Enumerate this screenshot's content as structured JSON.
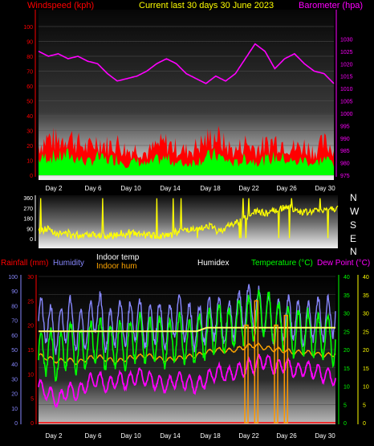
{
  "header": {
    "wind_label": "Windspeed (kph)",
    "title": "Current last 30 days 30 June 2023",
    "baro_label": "Barometer (hpa)"
  },
  "x_axis": {
    "ticks": [
      "Day 2",
      "Day 6",
      "Day 10",
      "Day 14",
      "Day 18",
      "Day 22",
      "Day 26",
      "Day 30"
    ]
  },
  "legend": {
    "rainfall": "Rainfall (mm)",
    "humidity": "Humidity",
    "indoor_temp": "Indoor temp",
    "indoor_hum": "Indoor hum",
    "humidex": "Humidex",
    "temperature": "Temperature (°C)",
    "dew_point": "Dew Point (°C)"
  },
  "direction_labels": [
    "N",
    "W",
    "S",
    "E",
    "N"
  ],
  "colors": {
    "wind_gust": "#ff0000",
    "wind_avg": "#00ff00",
    "barometer": "#ff00ff",
    "direction": "#ffff00",
    "rainfall": "#ff0000",
    "humidity": "#8888ff",
    "indoor_temp": "#ffffff",
    "indoor_hum": "#ffa500",
    "temperature": "#00ff00",
    "dew_point": "#ff00ff"
  },
  "chart_data": [
    {
      "type": "area",
      "ylim_left": [
        0,
        100
      ],
      "left_ticks": [
        0,
        10,
        20,
        30,
        40,
        50,
        60,
        70,
        80,
        90,
        100
      ],
      "ylim_right": [
        975,
        1035
      ],
      "right_ticks": [
        975,
        980,
        985,
        990,
        995,
        1000,
        1005,
        1010,
        1015,
        1020,
        1025,
        1030
      ],
      "x_days": [
        1,
        31
      ],
      "series": [
        {
          "name": "Windspeed (kph)",
          "kind": "gust",
          "x": [
            1,
            2,
            3,
            4,
            5,
            6,
            7,
            8,
            9,
            10,
            11,
            12,
            13,
            14,
            15,
            16,
            17,
            18,
            19,
            20,
            21,
            22,
            23,
            24,
            25,
            26,
            27,
            28,
            29,
            30,
            31
          ],
          "values": [
            22,
            28,
            25,
            30,
            24,
            20,
            26,
            22,
            24,
            18,
            20,
            16,
            22,
            24,
            20,
            18,
            21,
            26,
            30,
            22,
            18,
            24,
            20,
            22,
            26,
            24,
            20,
            22,
            18,
            24,
            20
          ]
        },
        {
          "name": "Windspeed (kph)",
          "kind": "average",
          "x": [
            1,
            2,
            3,
            4,
            5,
            6,
            7,
            8,
            9,
            10,
            11,
            12,
            13,
            14,
            15,
            16,
            17,
            18,
            19,
            20,
            21,
            22,
            23,
            24,
            25,
            26,
            27,
            28,
            29,
            30,
            31
          ],
          "values": [
            12,
            15,
            14,
            16,
            13,
            10,
            14,
            12,
            13,
            9,
            11,
            8,
            12,
            13,
            10,
            9,
            11,
            14,
            16,
            12,
            9,
            13,
            11,
            12,
            14,
            13,
            10,
            12,
            9,
            13,
            10
          ]
        },
        {
          "name": "Barometer (hpa)",
          "axis": "right",
          "x": [
            1,
            2,
            3,
            4,
            5,
            6,
            7,
            8,
            9,
            10,
            11,
            12,
            13,
            14,
            15,
            16,
            17,
            18,
            19,
            20,
            21,
            22,
            23,
            24,
            25,
            26,
            27,
            28,
            29,
            30,
            31
          ],
          "values": [
            1025,
            1023,
            1024,
            1022,
            1023,
            1021,
            1020,
            1016,
            1013,
            1014,
            1015,
            1017,
            1020,
            1022,
            1020,
            1016,
            1014,
            1012,
            1015,
            1013,
            1016,
            1022,
            1028,
            1025,
            1018,
            1022,
            1024,
            1020,
            1017,
            1016,
            1012
          ]
        }
      ]
    },
    {
      "type": "line",
      "ylim": [
        0,
        360
      ],
      "ticks": [
        0,
        90,
        180,
        270,
        360
      ],
      "x_days": [
        1,
        31
      ],
      "series": [
        {
          "name": "Wind direction",
          "x": [
            1,
            2,
            3,
            4,
            5,
            6,
            7,
            8,
            9,
            10,
            11,
            12,
            13,
            14,
            15,
            16,
            17,
            18,
            19,
            20,
            21,
            22,
            23,
            24,
            25,
            26,
            27,
            28,
            29,
            30,
            31
          ],
          "values": [
            60,
            90,
            40,
            50,
            30,
            45,
            35,
            20,
            40,
            60,
            35,
            30,
            20,
            40,
            60,
            80,
            70,
            120,
            60,
            110,
            150,
            200,
            240,
            220,
            260,
            280,
            240,
            230,
            250,
            260,
            270
          ]
        }
      ]
    },
    {
      "type": "line",
      "ylim_left": [
        0,
        100
      ],
      "left_ticks": [
        0,
        10,
        20,
        30,
        40,
        50,
        60,
        70,
        80,
        90,
        100
      ],
      "rain_ticks": [
        0,
        5,
        10,
        15,
        20,
        25,
        30
      ],
      "ylim_right": [
        0,
        40
      ],
      "right_ticks": [
        0,
        5,
        10,
        15,
        20,
        25,
        30,
        35,
        40
      ],
      "x_days": [
        1,
        31
      ],
      "series": [
        {
          "name": "Humidity",
          "x": [
            1,
            2,
            3,
            4,
            5,
            6,
            7,
            8,
            9,
            10,
            11,
            12,
            13,
            14,
            15,
            16,
            17,
            18,
            19,
            20,
            21,
            22,
            23,
            24,
            25,
            26,
            27,
            28,
            29,
            30,
            31
          ],
          "values": [
            72,
            68,
            60,
            74,
            62,
            65,
            78,
            60,
            70,
            66,
            72,
            64,
            70,
            62,
            76,
            68,
            64,
            70,
            72,
            66,
            74,
            80,
            78,
            74,
            68,
            72,
            70,
            66,
            72,
            70,
            74
          ]
        },
        {
          "name": "Indoor temp",
          "x": [
            1,
            2,
            3,
            4,
            5,
            6,
            7,
            8,
            9,
            10,
            11,
            12,
            13,
            14,
            15,
            16,
            17,
            18,
            19,
            20,
            21,
            22,
            23,
            24,
            25,
            26,
            27,
            28,
            29,
            30,
            31
          ],
          "values": [
            25,
            25,
            25,
            25,
            25,
            25,
            25,
            25,
            25,
            25,
            25,
            25,
            25,
            25,
            25,
            25,
            25,
            26,
            26,
            26,
            26,
            26,
            26,
            26,
            26,
            26,
            26,
            26,
            26,
            26,
            26
          ]
        },
        {
          "name": "Indoor hum",
          "x": [
            1,
            2,
            3,
            4,
            5,
            6,
            7,
            8,
            9,
            10,
            11,
            12,
            13,
            14,
            15,
            16,
            17,
            18,
            19,
            20,
            21,
            22,
            23,
            24,
            25,
            26,
            27,
            28,
            29,
            30,
            31
          ],
          "values": [
            46,
            44,
            42,
            43,
            41,
            44,
            45,
            43,
            42,
            44,
            45,
            46,
            44,
            43,
            44,
            45,
            46,
            48,
            50,
            49,
            50,
            52,
            53,
            51,
            50,
            49,
            48,
            48,
            47,
            46,
            47
          ]
        },
        {
          "name": "Temperature (°C)",
          "x": [
            1,
            2,
            3,
            4,
            5,
            6,
            7,
            8,
            9,
            10,
            11,
            12,
            13,
            14,
            15,
            16,
            17,
            18,
            19,
            20,
            21,
            22,
            23,
            24,
            25,
            26,
            27,
            28,
            29,
            30,
            31
          ],
          "values": [
            18,
            20,
            17,
            22,
            19,
            21,
            23,
            20,
            22,
            21,
            24,
            22,
            23,
            21,
            24,
            22,
            23,
            24,
            26,
            25,
            27,
            28,
            29,
            30,
            27,
            26,
            24,
            25,
            23,
            24,
            22
          ]
        },
        {
          "name": "Dew Point (°C)",
          "x": [
            1,
            2,
            3,
            4,
            5,
            6,
            7,
            8,
            9,
            10,
            11,
            12,
            13,
            14,
            15,
            16,
            17,
            18,
            19,
            20,
            21,
            22,
            23,
            24,
            25,
            26,
            27,
            28,
            29,
            30,
            31
          ],
          "values": [
            10,
            8,
            6,
            9,
            8,
            11,
            12,
            10,
            12,
            11,
            13,
            12,
            11,
            10,
            12,
            11,
            10,
            12,
            14,
            13,
            14,
            15,
            16,
            17,
            15,
            16,
            14,
            15,
            14,
            13,
            12
          ]
        },
        {
          "name": "Rainfall (mm)",
          "x": [
            22,
            23,
            25,
            26
          ],
          "values": [
            20,
            25,
            20,
            22
          ]
        }
      ]
    }
  ]
}
